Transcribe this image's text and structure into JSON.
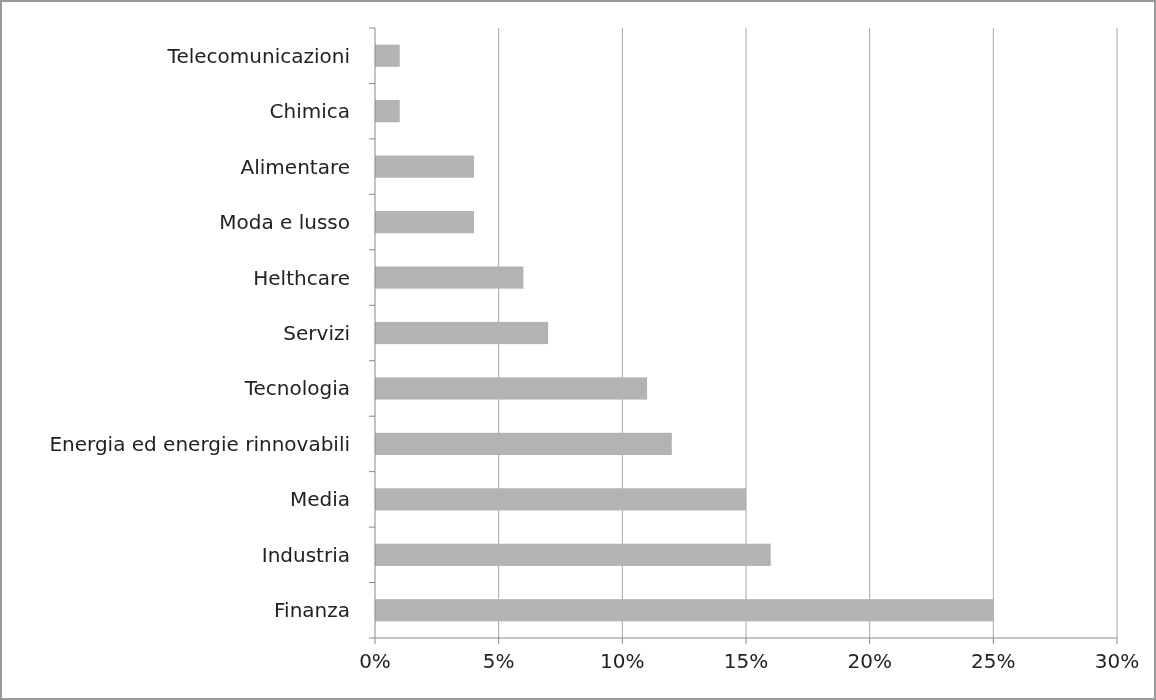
{
  "chart_data": {
    "type": "bar",
    "orientation": "horizontal",
    "categories": [
      "Telecomunicazioni",
      "Chimica",
      "Alimentare",
      "Moda e lusso",
      "Helthcare",
      "Servizi",
      "Tecnologia",
      "Energia ed energie rinnovabili",
      "Media",
      "Industria",
      "Finanza"
    ],
    "values": [
      1,
      1,
      4,
      4,
      6,
      7,
      11,
      12,
      15,
      16,
      25
    ],
    "color": "#b3b3b3",
    "xlim": [
      0,
      30
    ],
    "xticks": [
      {
        "value": 0,
        "label": "0%"
      },
      {
        "value": 5,
        "label": "5%"
      },
      {
        "value": 10,
        "label": "10%"
      },
      {
        "value": 15,
        "label": "15%"
      },
      {
        "value": 20,
        "label": "20%"
      },
      {
        "value": 25,
        "label": "25%"
      },
      {
        "value": 30,
        "label": "30%"
      }
    ],
    "grid": "x"
  }
}
